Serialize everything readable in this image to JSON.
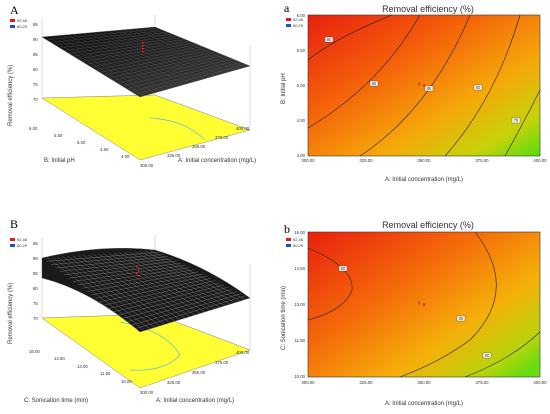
{
  "chart_data": [
    {
      "panel": "A",
      "type": "surface3d",
      "title": "",
      "legend": {
        "high": "92.46",
        "low": "60.29",
        "color_high": "#e31a1c",
        "color_low": "#1f4fd1"
      },
      "zlabel": "Removal efficiency (%)",
      "z_ticks": [
        "95",
        "90",
        "85",
        "80",
        "75",
        "70"
      ],
      "xlabel": "A: Initial concentration (mg/L)",
      "x_ticks": [
        "300.00",
        "325.00",
        "350.00",
        "375.00",
        "400.00"
      ],
      "ylabel": "B: Initial pH",
      "y_ticks": [
        "4.00",
        "4.50",
        "5.00",
        "5.50",
        "6.00"
      ],
      "surface_color": "#111111",
      "floor_color": "#ffff33"
    },
    {
      "panel": "a",
      "type": "contour",
      "title": "Removal efficiency (%)",
      "legend": {
        "high": "92.46",
        "low": "60.29"
      },
      "xlabel": "A: Initial concentration (mg/L)",
      "x_ticks": [
        "300.00",
        "325.00",
        "350.00",
        "375.00",
        "400.00"
      ],
      "ylabel": "B: Initial pH",
      "y_ticks": [
        "4.00",
        "4.50",
        "5.00",
        "5.50",
        "6.00"
      ],
      "xlim": [
        300,
        400
      ],
      "ylim": [
        4,
        6
      ],
      "contour_labels": [
        "90",
        "85",
        "85",
        "80",
        "75"
      ],
      "center_point": {
        "x": 350,
        "y": 5,
        "label": "6"
      }
    },
    {
      "panel": "B",
      "type": "surface3d",
      "title": "",
      "legend": {
        "high": "92.46",
        "low": "60.29"
      },
      "zlabel": "Removal efficiency (%)",
      "z_ticks": [
        "95",
        "90",
        "85",
        "80",
        "75",
        "70"
      ],
      "xlabel": "A: Initial concentration (mg/L)",
      "x_ticks": [
        "300.00",
        "325.00",
        "350.00",
        "375.00",
        "400.00"
      ],
      "ylabel": "C: Sonication time (min)",
      "y_ticks": [
        "10.00",
        "11.50",
        "13.00",
        "14.50",
        "16.00"
      ],
      "surface_color": "#111111",
      "floor_color": "#ffff33"
    },
    {
      "panel": "b",
      "type": "contour",
      "title": "Removal efficiency (%)",
      "legend": {
        "high": "92.46",
        "low": "60.29"
      },
      "xlabel": "A: Initial concentration (mg/L)",
      "x_ticks": [
        "300.00",
        "325.00",
        "350.00",
        "375.00",
        "400.00"
      ],
      "ylabel": "C: Sonication time (min)",
      "y_ticks": [
        "10.00",
        "11.50",
        "13.00",
        "14.50",
        "16.00"
      ],
      "xlim": [
        300,
        400
      ],
      "ylim": [
        10,
        16
      ],
      "contour_labels": [
        "90",
        "85",
        "80"
      ],
      "center_point": {
        "x": 350,
        "y": 13,
        "label": "6"
      }
    }
  ]
}
